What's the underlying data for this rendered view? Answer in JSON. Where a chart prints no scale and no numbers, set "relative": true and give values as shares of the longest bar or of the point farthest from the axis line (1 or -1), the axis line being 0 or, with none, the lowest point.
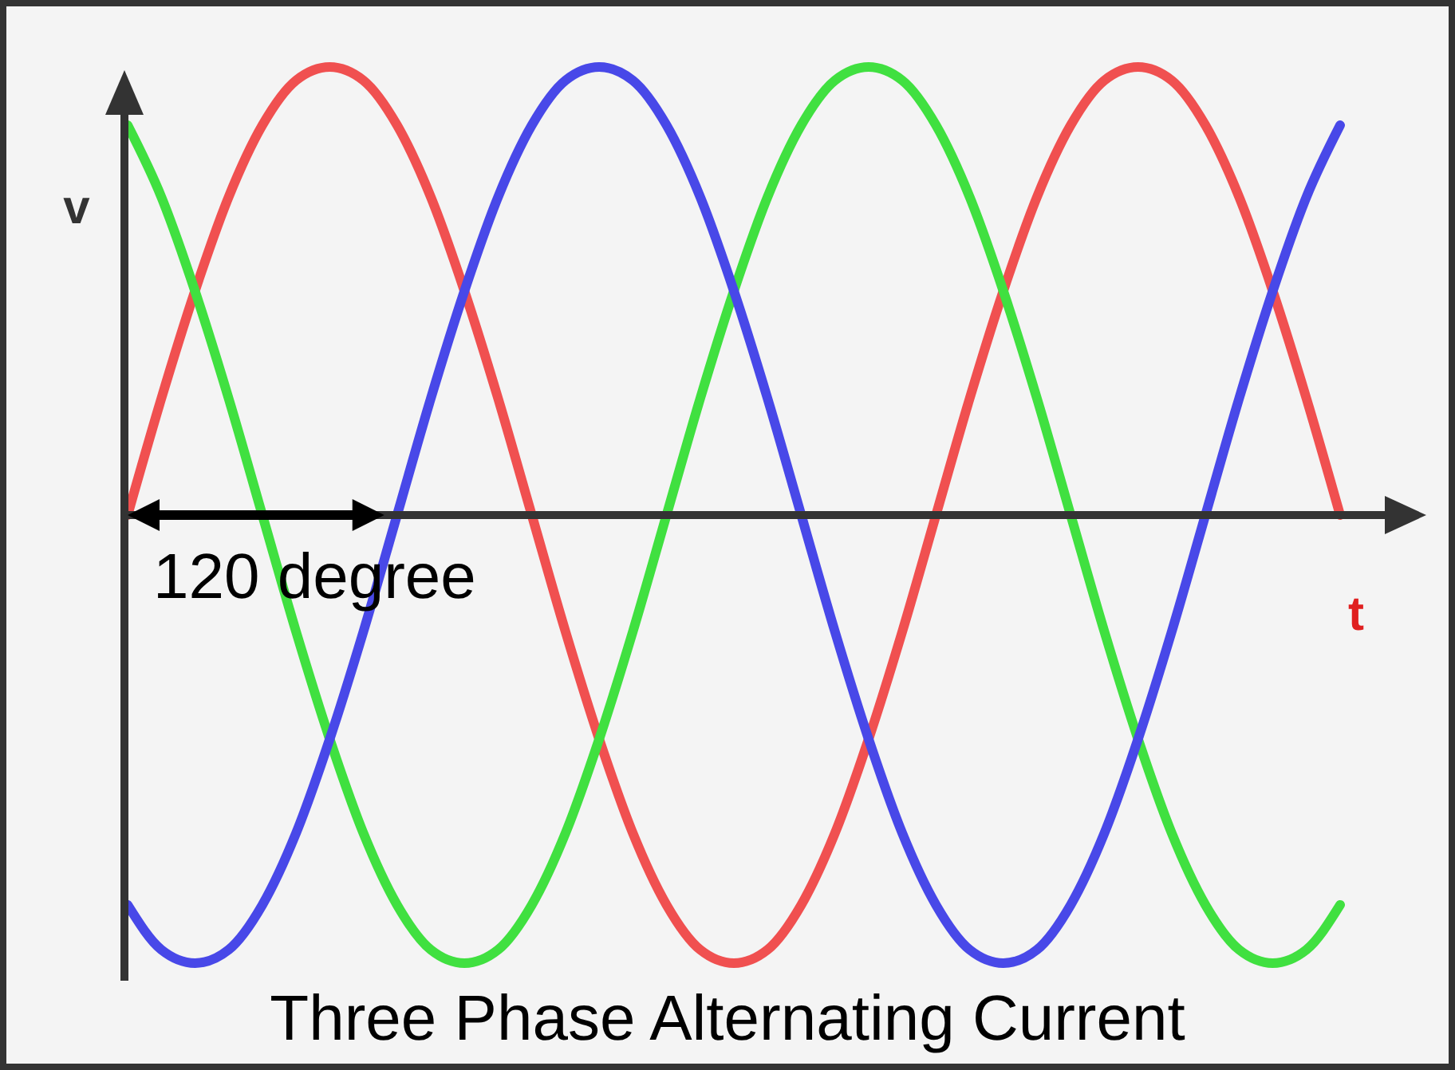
{
  "chart_data": {
    "type": "line",
    "title": "Three Phase Alternating Current",
    "xlabel": "t",
    "ylabel": "v",
    "relative": true,
    "marker": "none",
    "line_style": "solid",
    "annotations": [
      "120 degree"
    ],
    "categories": [
      null,
      null,
      null,
      null,
      null,
      null,
      null,
      null,
      null,
      null,
      null,
      null,
      null,
      null,
      null,
      null,
      null,
      null,
      null,
      null,
      null,
      null,
      null,
      null,
      null,
      null,
      null,
      null,
      null,
      null,
      null,
      null,
      null,
      null,
      null,
      null,
      null
    ],
    "series": [
      {
        "color": "#f05050",
        "values": [
          0,
          0.26,
          0.5,
          0.71,
          0.87,
          0.97,
          1,
          0.97,
          0.87,
          0.71,
          0.5,
          0.26,
          0,
          -0.26,
          -0.5,
          -0.71,
          -0.87,
          -0.97,
          -1,
          -0.97,
          -0.87,
          -0.71,
          -0.5,
          -0.26,
          0,
          0.26,
          0.5,
          0.71,
          0.87,
          0.97,
          1,
          0.97,
          0.87,
          0.71,
          0.5,
          0.26,
          0
        ]
      },
      {
        "color": "#40e040",
        "values": [
          0.87,
          0.71,
          0.5,
          0.26,
          0,
          -0.26,
          -0.5,
          -0.71,
          -0.87,
          -0.97,
          -1,
          -0.97,
          -0.87,
          -0.71,
          -0.5,
          -0.26,
          0,
          0.26,
          0.5,
          0.71,
          0.87,
          0.97,
          1,
          0.97,
          0.87,
          0.71,
          0.5,
          0.26,
          0,
          -0.26,
          -0.5,
          -0.71,
          -0.87,
          -0.97,
          -1,
          -0.97,
          -0.87
        ]
      },
      {
        "color": "#4848e8",
        "values": [
          -0.87,
          -0.97,
          -1,
          -0.97,
          -0.87,
          -0.71,
          -0.5,
          -0.26,
          0,
          0.26,
          0.5,
          0.71,
          0.87,
          0.97,
          1,
          0.97,
          0.87,
          0.71,
          0.5,
          0.26,
          0,
          -0.26,
          -0.5,
          -0.71,
          -0.87,
          -0.97,
          -1,
          -0.97,
          -0.87,
          -0.71,
          -0.5,
          -0.26,
          0,
          0.26,
          0.5,
          0.71,
          0.87
        ]
      }
    ]
  }
}
